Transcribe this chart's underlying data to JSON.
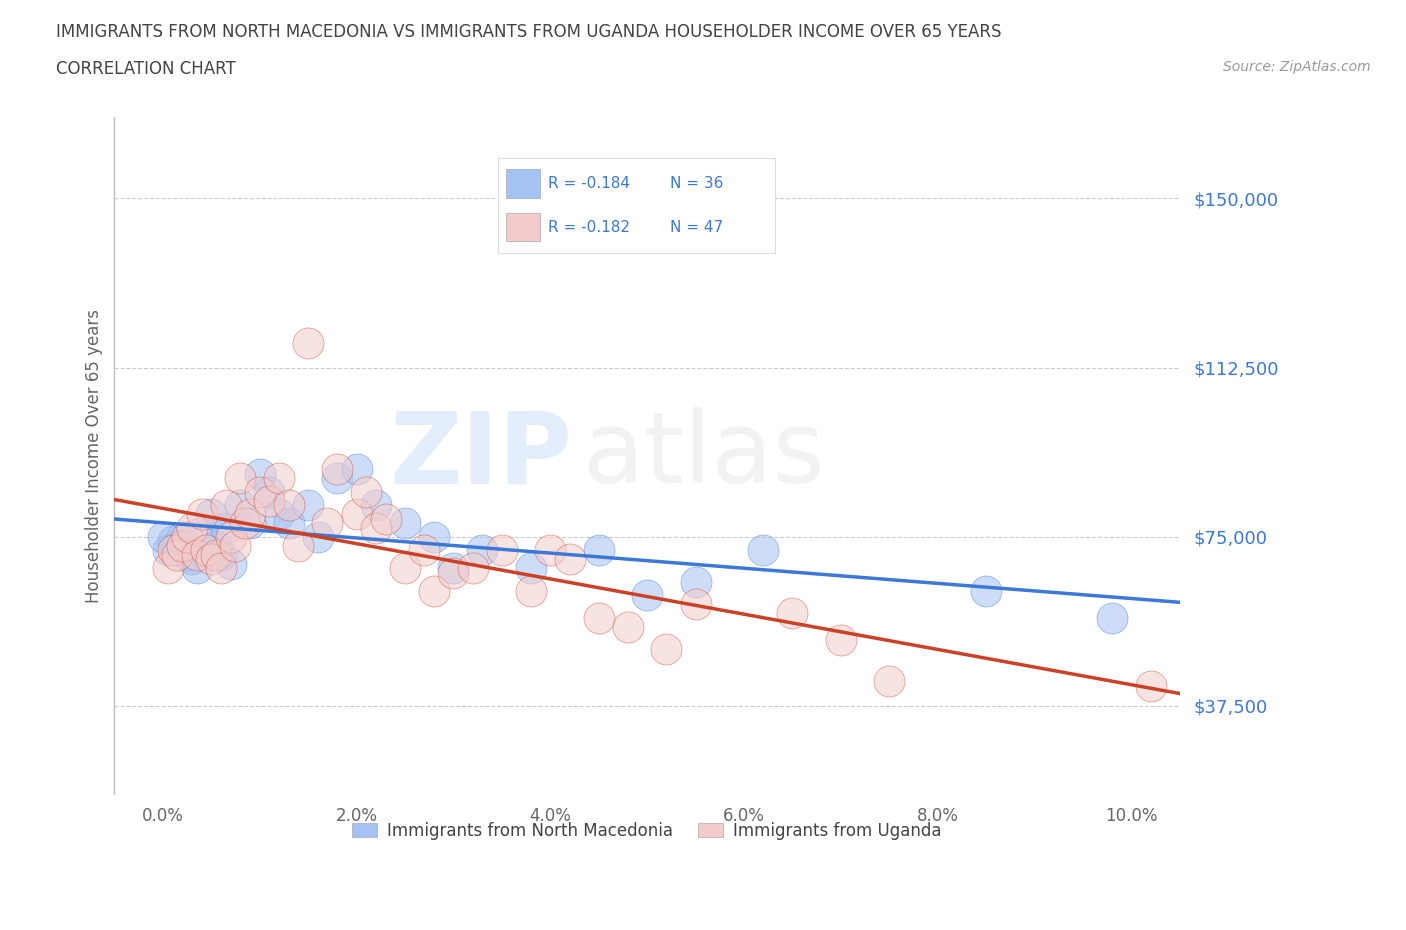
{
  "title_line1": "IMMIGRANTS FROM NORTH MACEDONIA VS IMMIGRANTS FROM UGANDA HOUSEHOLDER INCOME OVER 65 YEARS",
  "title_line2": "CORRELATION CHART",
  "source_text": "Source: ZipAtlas.com",
  "ylabel": "Householder Income Over 65 years",
  "ytick_labels": [
    "$37,500",
    "$75,000",
    "$112,500",
    "$150,000"
  ],
  "ytick_vals": [
    37500,
    75000,
    112500,
    150000
  ],
  "xtick_labels": [
    "0.0%",
    "2.0%",
    "4.0%",
    "6.0%",
    "8.0%",
    "10.0%"
  ],
  "xtick_vals": [
    0.0,
    2.0,
    4.0,
    6.0,
    8.0,
    10.0
  ],
  "xlim": [
    -0.5,
    10.5
  ],
  "ylim": [
    18000,
    168000
  ],
  "blue_color": "#a4c2f4",
  "pink_color": "#f4cccc",
  "blue_line_color": "#3c78d8",
  "pink_line_color": "#cc4125",
  "legend_label_blue": "Immigrants from North Macedonia",
  "legend_label_pink": "Immigrants from Uganda",
  "legend_r_blue": "R = -0.184",
  "legend_n_blue": "N = 36",
  "legend_r_pink": "R = -0.182",
  "legend_n_pink": "N = 47",
  "watermark_zip_color": "#6d9eeb",
  "watermark_atlas_color": "#b7b7b7",
  "background_color": "#ffffff",
  "grid_color": "#cccccc",
  "title_color": "#434343",
  "tick_color_y": "#3c78d8",
  "tick_color_x": "#666666",
  "blue_x": [
    0.05,
    0.1,
    0.15,
    0.2,
    0.25,
    0.3,
    0.35,
    0.4,
    0.5,
    0.55,
    0.6,
    0.65,
    0.7,
    0.8,
    0.9,
    1.0,
    1.1,
    1.2,
    1.3,
    1.5,
    1.6,
    1.8,
    2.0,
    2.2,
    2.5,
    2.8,
    3.0,
    3.3,
    3.8,
    4.5,
    5.0,
    5.5,
    6.2,
    8.5,
    9.8,
    0.0
  ],
  "blue_y": [
    72000,
    74000,
    73000,
    75000,
    71000,
    70000,
    68000,
    76000,
    80000,
    73000,
    71000,
    77000,
    69000,
    82000,
    78000,
    89000,
    85000,
    80000,
    78000,
    82000,
    75000,
    88000,
    90000,
    82000,
    78000,
    75000,
    68000,
    72000,
    68000,
    72000,
    62000,
    65000,
    72000,
    63000,
    57000,
    75000
  ],
  "pink_x": [
    0.05,
    0.1,
    0.15,
    0.2,
    0.25,
    0.3,
    0.35,
    0.4,
    0.45,
    0.5,
    0.55,
    0.6,
    0.65,
    0.7,
    0.75,
    0.8,
    0.85,
    0.9,
    1.0,
    1.1,
    1.2,
    1.3,
    1.4,
    1.5,
    1.7,
    1.8,
    2.0,
    2.1,
    2.2,
    2.3,
    2.5,
    2.7,
    2.8,
    3.0,
    3.2,
    3.5,
    3.8,
    4.0,
    4.2,
    4.5,
    4.8,
    5.2,
    5.5,
    6.5,
    7.0,
    7.5,
    10.2
  ],
  "pink_y": [
    68000,
    72000,
    71000,
    73000,
    75000,
    77000,
    71000,
    80000,
    72000,
    70000,
    71000,
    68000,
    82000,
    75000,
    73000,
    88000,
    78000,
    80000,
    85000,
    83000,
    88000,
    82000,
    73000,
    118000,
    78000,
    90000,
    80000,
    85000,
    77000,
    79000,
    68000,
    72000,
    63000,
    67000,
    68000,
    72000,
    63000,
    72000,
    70000,
    57000,
    55000,
    50000,
    60000,
    58000,
    52000,
    43000,
    42000
  ]
}
